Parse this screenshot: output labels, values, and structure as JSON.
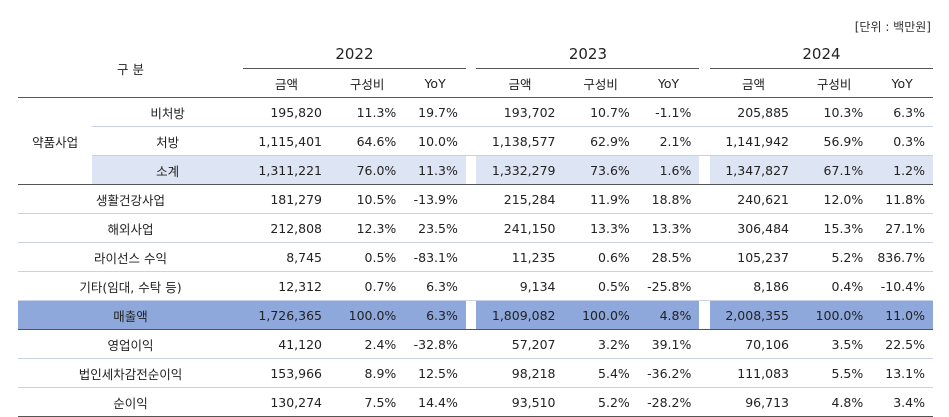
{
  "unit": "[단위 : 백만원]",
  "header": {
    "category": "구 분",
    "years": [
      "2022",
      "2023",
      "2024"
    ],
    "subcols": [
      "금액",
      "구성비",
      "YoY"
    ]
  },
  "group": {
    "label": "약품사업"
  },
  "rows": [
    {
      "label": "비처방",
      "v": [
        "195,820",
        "11.3%",
        "19.7%",
        "193,702",
        "10.7%",
        "-1.1%",
        "205,885",
        "10.3%",
        "6.3%"
      ]
    },
    {
      "label": "처방",
      "v": [
        "1,115,401",
        "64.6%",
        "10.0%",
        "1,138,577",
        "62.9%",
        "2.1%",
        "1,141,942",
        "56.9%",
        "0.3%"
      ]
    },
    {
      "label": "소계",
      "v": [
        "1,311,221",
        "76.0%",
        "11.3%",
        "1,332,279",
        "73.6%",
        "1.6%",
        "1,347,827",
        "67.1%",
        "1.2%"
      ]
    },
    {
      "label": "생활건강사업",
      "v": [
        "181,279",
        "10.5%",
        "-13.9%",
        "215,284",
        "11.9%",
        "18.8%",
        "240,621",
        "12.0%",
        "11.8%"
      ]
    },
    {
      "label": "해외사업",
      "v": [
        "212,808",
        "12.3%",
        "23.5%",
        "241,150",
        "13.3%",
        "13.3%",
        "306,484",
        "15.3%",
        "27.1%"
      ]
    },
    {
      "label": "라이선스 수익",
      "v": [
        "8,745",
        "0.5%",
        "-83.1%",
        "11,235",
        "0.6%",
        "28.5%",
        "105,237",
        "5.2%",
        "836.7%"
      ]
    },
    {
      "label": "기타(임대, 수탁 등)",
      "v": [
        "12,312",
        "0.7%",
        "6.3%",
        "9,134",
        "0.5%",
        "-25.8%",
        "8,186",
        "0.4%",
        "-10.4%"
      ]
    },
    {
      "label": "매출액",
      "v": [
        "1,726,365",
        "100.0%",
        "6.3%",
        "1,809,082",
        "100.0%",
        "4.8%",
        "2,008,355",
        "100.0%",
        "11.0%"
      ]
    },
    {
      "label": "영업이익",
      "v": [
        "41,120",
        "2.4%",
        "-32.8%",
        "57,207",
        "3.2%",
        "39.1%",
        "70,106",
        "3.5%",
        "22.5%"
      ]
    },
    {
      "label": "법인세차감전순이익",
      "v": [
        "153,966",
        "8.9%",
        "12.5%",
        "98,218",
        "5.4%",
        "-36.2%",
        "111,083",
        "5.5%",
        "13.1%"
      ]
    },
    {
      "label": "순이익",
      "v": [
        "130,274",
        "7.5%",
        "14.4%",
        "93,510",
        "5.2%",
        "-28.2%",
        "96,713",
        "4.8%",
        "3.4%"
      ]
    }
  ]
}
